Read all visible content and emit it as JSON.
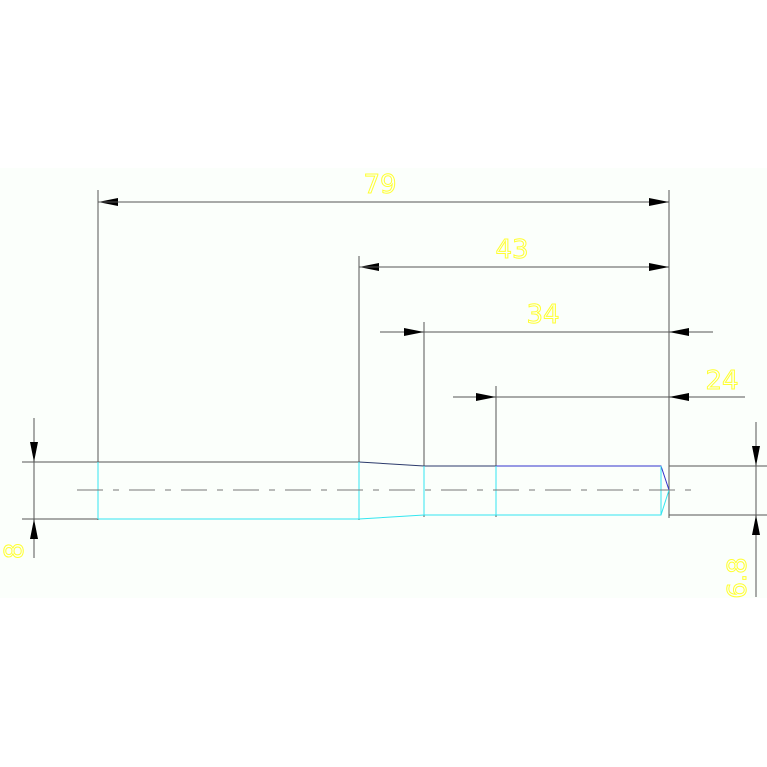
{
  "drawing": {
    "dimensions": {
      "overall_length": "79",
      "length_43": "43",
      "length_34": "34",
      "length_24": "24",
      "left_diameter": "8",
      "right_diameter": "6.8"
    },
    "colors": {
      "background": "#fbfffb",
      "dimension_line": "#555555",
      "dimension_text": "#ffff33",
      "outline_top": "#2b3a6b",
      "outline_cyan": "#33e6f0",
      "outline_blue": "#3333cc",
      "centerline": "#777777"
    }
  }
}
